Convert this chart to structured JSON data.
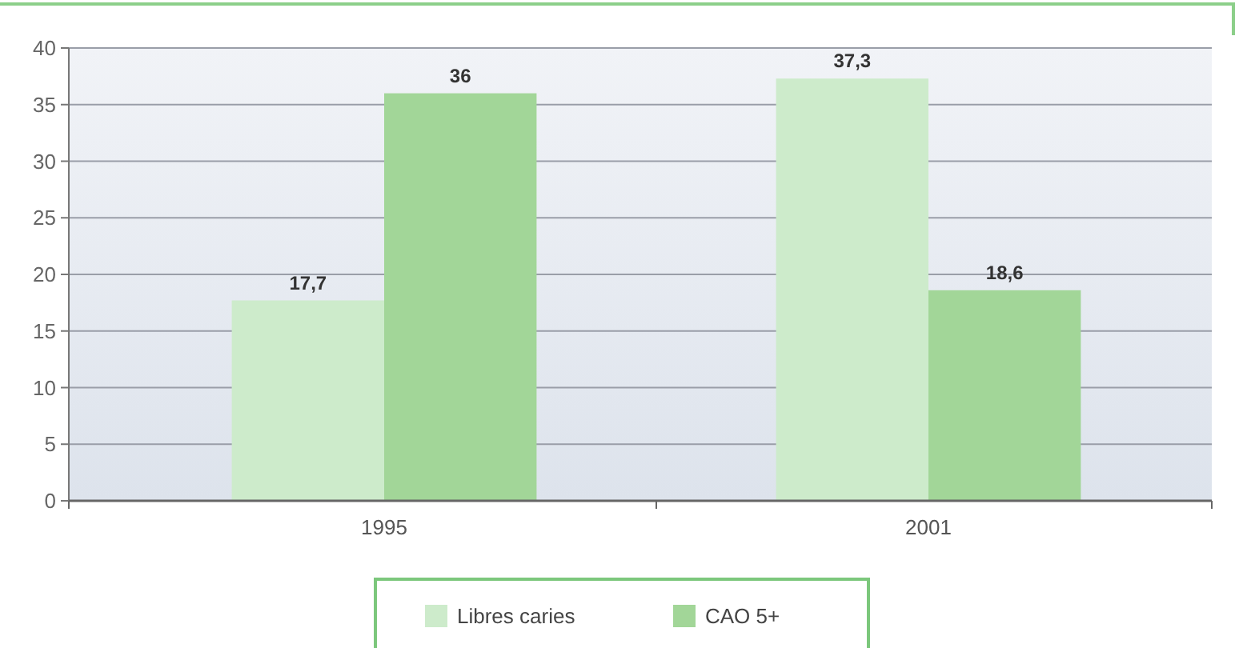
{
  "chart_data": {
    "type": "bar",
    "categories": [
      "1995",
      "2001"
    ],
    "series": [
      {
        "name": "Libres caries",
        "color": "#cdebcb",
        "values": [
          17.7,
          37.3
        ],
        "value_labels": [
          "17,7",
          "37,3"
        ]
      },
      {
        "name": "CAO 5+",
        "color": "#a2d698",
        "values": [
          36,
          18.6
        ],
        "value_labels": [
          "36",
          "18,6"
        ]
      }
    ],
    "ylim": [
      0,
      40
    ],
    "yticks": [
      0,
      5,
      10,
      15,
      20,
      25,
      30,
      35,
      40
    ],
    "grid": "y",
    "legend": "bottom"
  }
}
